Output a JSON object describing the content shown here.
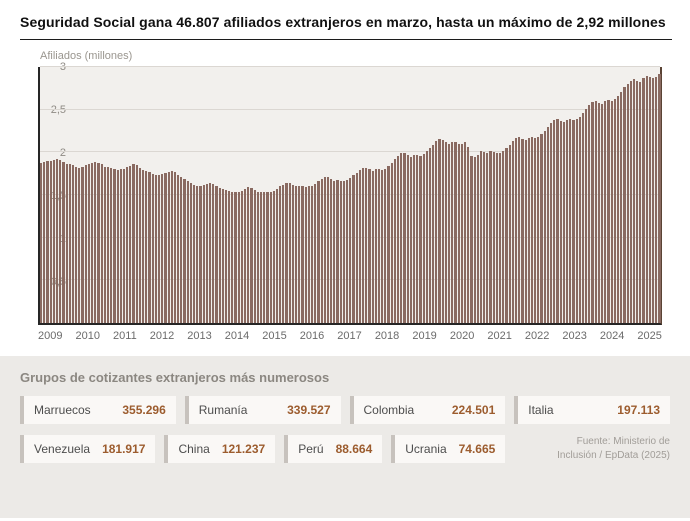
{
  "title": "Seguridad Social gana 46.807 afiliados extranjeros en marzo, hasta un máximo de 2,92 millones",
  "chart_data": {
    "type": "bar",
    "title": "Seguridad Social gana 46.807 afiliados extranjeros en marzo, hasta un máximo de 2,92 millones",
    "ylabel": "Afiliados (millones)",
    "xlabel": "",
    "ylim": [
      0,
      3
    ],
    "grid_on": true,
    "bar_color": "#8a6a61",
    "x_unit": "month",
    "x_start": "2009-01",
    "x_end": "2025-03",
    "year_labels": [
      "2009",
      "2010",
      "2011",
      "2012",
      "2013",
      "2014",
      "2015",
      "2016",
      "2017",
      "2018",
      "2019",
      "2020",
      "2021",
      "2022",
      "2023",
      "2024",
      "2025"
    ],
    "y_ticks": [
      {
        "v": 0.5,
        "label": "0,5"
      },
      {
        "v": 1,
        "label": "1"
      },
      {
        "v": 1.5,
        "label": "1,5"
      },
      {
        "v": 2,
        "label": "2"
      },
      {
        "v": 2.5,
        "label": "2,5"
      },
      {
        "v": 3,
        "label": "3"
      }
    ],
    "values": [
      1.88,
      1.89,
      1.9,
      1.9,
      1.91,
      1.92,
      1.91,
      1.89,
      1.86,
      1.86,
      1.85,
      1.83,
      1.82,
      1.83,
      1.85,
      1.86,
      1.88,
      1.89,
      1.88,
      1.86,
      1.83,
      1.83,
      1.82,
      1.8,
      1.79,
      1.8,
      1.81,
      1.83,
      1.84,
      1.86,
      1.85,
      1.82,
      1.79,
      1.78,
      1.77,
      1.75,
      1.73,
      1.74,
      1.75,
      1.76,
      1.77,
      1.78,
      1.77,
      1.74,
      1.71,
      1.69,
      1.67,
      1.64,
      1.62,
      1.61,
      1.61,
      1.62,
      1.63,
      1.64,
      1.63,
      1.61,
      1.58,
      1.57,
      1.56,
      1.55,
      1.53,
      1.53,
      1.54,
      1.55,
      1.57,
      1.59,
      1.58,
      1.56,
      1.54,
      1.54,
      1.54,
      1.53,
      1.54,
      1.55,
      1.57,
      1.6,
      1.62,
      1.64,
      1.64,
      1.62,
      1.6,
      1.61,
      1.6,
      1.59,
      1.6,
      1.61,
      1.63,
      1.66,
      1.69,
      1.71,
      1.71,
      1.69,
      1.67,
      1.68,
      1.67,
      1.66,
      1.68,
      1.7,
      1.73,
      1.76,
      1.79,
      1.82,
      1.82,
      1.8,
      1.78,
      1.8,
      1.8,
      1.79,
      1.81,
      1.84,
      1.88,
      1.92,
      1.96,
      1.99,
      1.99,
      1.97,
      1.95,
      1.97,
      1.97,
      1.96,
      1.98,
      2.01,
      2.05,
      2.09,
      2.13,
      2.16,
      2.15,
      2.12,
      2.1,
      2.12,
      2.12,
      2.1,
      2.1,
      2.12,
      2.06,
      1.96,
      1.94,
      1.97,
      2.01,
      2.0,
      1.99,
      2.01,
      2.0,
      1.99,
      1.99,
      2.01,
      2.05,
      2.09,
      2.13,
      2.17,
      2.18,
      2.16,
      2.14,
      2.17,
      2.18,
      2.17,
      2.18,
      2.21,
      2.25,
      2.3,
      2.34,
      2.38,
      2.39,
      2.37,
      2.36,
      2.38,
      2.39,
      2.38,
      2.39,
      2.42,
      2.46,
      2.51,
      2.55,
      2.59,
      2.6,
      2.58,
      2.57,
      2.6,
      2.61,
      2.6,
      2.62,
      2.66,
      2.71,
      2.76,
      2.8,
      2.84,
      2.86,
      2.84,
      2.83,
      2.87,
      2.89,
      2.88,
      2.87,
      2.88,
      2.92
    ]
  },
  "groups": {
    "heading": "Grupos de cotizantes extranjeros más numerosos",
    "accent_color": "#9c5c2e",
    "items": [
      {
        "label": "Marruecos",
        "value": "355.296"
      },
      {
        "label": "Rumanía",
        "value": "339.527"
      },
      {
        "label": "Colombia",
        "value": "224.501"
      },
      {
        "label": "Italia",
        "value": "197.113"
      },
      {
        "label": "Venezuela",
        "value": "181.917"
      },
      {
        "label": "China",
        "value": "121.237"
      },
      {
        "label": "Perú",
        "value": "88.664"
      },
      {
        "label": "Ucrania",
        "value": "74.665"
      }
    ]
  },
  "source": {
    "line1": "Fuente: Ministerio de",
    "line2": "Inclusión / EpData (2025)"
  }
}
